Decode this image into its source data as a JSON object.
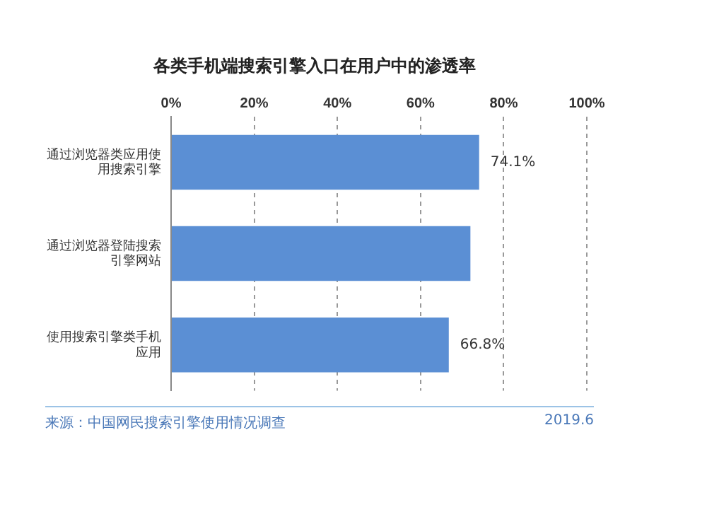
{
  "chart_data": {
    "type": "bar",
    "orientation": "horizontal",
    "title": "各类手机端搜索引擎入口在用户中的渗透率",
    "categories": [
      "通过浏览器类应用使用搜索引擎",
      "通过浏览器登陆搜索引擎网站",
      "使用搜索引擎类手机应用"
    ],
    "values": [
      74.1,
      72,
      66.8
    ],
    "color": "#5b8fd4",
    "value_labels": [
      "74.1%",
      null,
      "66.8%"
    ],
    "xlim": [
      0,
      100
    ],
    "xticks": [
      {
        "value": 0,
        "label": "0%"
      },
      {
        "value": 20,
        "label": "20%"
      },
      {
        "value": 40,
        "label": "40%"
      },
      {
        "value": 60,
        "label": "60%"
      },
      {
        "value": 80,
        "label": "80%"
      },
      {
        "value": 100,
        "label": "100%"
      }
    ],
    "grid": "x",
    "legend": false,
    "annotations": [
      "来源：中国网民搜索引擎使用情况调查",
      "2019.6"
    ]
  }
}
